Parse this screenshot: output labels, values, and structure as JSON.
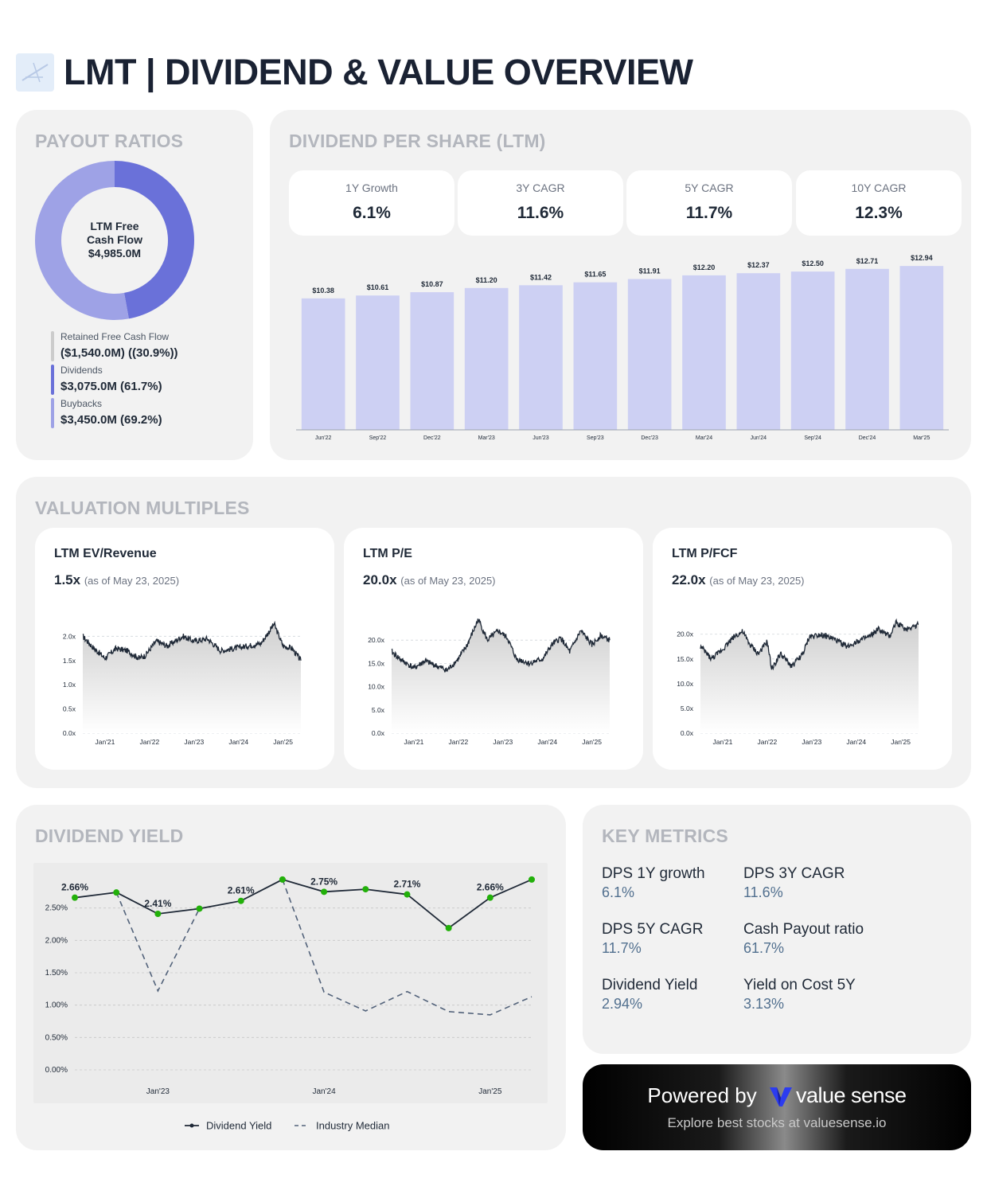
{
  "header": {
    "title": "LMT | DIVIDEND & VALUE OVERVIEW"
  },
  "payout": {
    "title": "PAYOUT RATIOS",
    "donut_center": {
      "line1": "LTM Free",
      "line2": "Cash Flow",
      "value": "$4,985.0M"
    },
    "legend": [
      {
        "label": "Retained Free Cash Flow",
        "value": "($1,540.0M) ((30.9%))",
        "color": "#cccccc"
      },
      {
        "label": "Dividends",
        "value": "$3,075.0M (61.7%)",
        "color": "#6a71d9"
      },
      {
        "label": "Buybacks",
        "value": "$3,450.0M (69.2%)",
        "color": "#9ea2e6"
      }
    ]
  },
  "dps": {
    "title": "DIVIDEND PER SHARE (LTM)",
    "stats": [
      {
        "label": "1Y Growth",
        "value": "6.1%"
      },
      {
        "label": "3Y CAGR",
        "value": "11.6%"
      },
      {
        "label": "5Y CAGR",
        "value": "11.7%"
      },
      {
        "label": "10Y CAGR",
        "value": "12.3%"
      }
    ]
  },
  "valuation": {
    "title": "VALUATION MULTIPLES",
    "cards": [
      {
        "title": "LTM EV/Revenue",
        "value": "1.5x",
        "note": "(as of May 23, 2025)"
      },
      {
        "title": "LTM P/E",
        "value": "20.0x",
        "note": "(as of May 23, 2025)"
      },
      {
        "title": "LTM P/FCF",
        "value": "22.0x",
        "note": "(as of May 23, 2025)"
      }
    ]
  },
  "yield": {
    "title": "DIVIDEND YIELD"
  },
  "key_metrics": {
    "title": "KEY METRICS",
    "items": [
      {
        "label": "DPS 1Y growth",
        "value": "6.1%"
      },
      {
        "label": "DPS 3Y CAGR",
        "value": "11.6%"
      },
      {
        "label": "DPS 5Y CAGR",
        "value": "11.7%"
      },
      {
        "label": "Cash Payout ratio",
        "value": "61.7%"
      },
      {
        "label": "Dividend Yield",
        "value": "2.94%"
      },
      {
        "label": "Yield on Cost 5Y",
        "value": "3.13%"
      }
    ]
  },
  "powered": {
    "prefix": "Powered by",
    "brand": "value sense",
    "sub": "Explore best stocks at valuesense.io"
  },
  "chart_data": [
    {
      "type": "pie",
      "categories": [
        "Dividends",
        "Buybacks"
      ],
      "values": [
        61.7,
        69.2
      ],
      "colors": [
        "#6a71d9",
        "#9ea2e6"
      ],
      "note": "donut"
    },
    {
      "type": "bar",
      "categories": [
        "Jun'22",
        "Sep'22",
        "Dec'22",
        "Mar'23",
        "Jun'23",
        "Sep'23",
        "Dec'23",
        "Mar'24",
        "Jun'24",
        "Sep'24",
        "Dec'24",
        "Mar'25"
      ],
      "values": [
        10.38,
        10.61,
        10.87,
        11.2,
        11.42,
        11.65,
        11.91,
        12.2,
        12.37,
        12.5,
        12.71,
        12.94
      ],
      "labels": [
        "$10.38",
        "$10.61",
        "$10.87",
        "$11.20",
        "$11.42",
        "$11.65",
        "$11.91",
        "$12.20",
        "$12.37",
        "$12.50",
        "$12.71",
        "$12.94"
      ],
      "color": "#cdd0f3",
      "ylim": [
        0,
        13.2
      ]
    },
    {
      "type": "area",
      "x_ticks": [
        "Jan'21",
        "Jan'22",
        "Jan'23",
        "Jan'24",
        "Jan'25"
      ],
      "y_ticks": [
        "0.0x",
        "0.5x",
        "1.0x",
        "1.5x",
        "2.0x"
      ],
      "ylim": [
        0,
        2.4
      ],
      "x_range": [
        2020.5,
        2025.4
      ],
      "anchors": [
        [
          2020.5,
          2.0
        ],
        [
          2020.75,
          1.75
        ],
        [
          2021.0,
          1.55
        ],
        [
          2021.25,
          1.75
        ],
        [
          2021.5,
          1.7
        ],
        [
          2021.75,
          1.55
        ],
        [
          2021.9,
          1.6
        ],
        [
          2022.15,
          1.9
        ],
        [
          2022.4,
          1.8
        ],
        [
          2022.75,
          2.0
        ],
        [
          2023.0,
          1.9
        ],
        [
          2023.3,
          1.95
        ],
        [
          2023.6,
          1.7
        ],
        [
          2023.9,
          1.75
        ],
        [
          2024.2,
          1.8
        ],
        [
          2024.5,
          1.85
        ],
        [
          2024.8,
          2.25
        ],
        [
          2025.0,
          1.8
        ],
        [
          2025.2,
          1.75
        ],
        [
          2025.4,
          1.5
        ]
      ],
      "grid": true
    },
    {
      "type": "area",
      "x_ticks": [
        "Jan'21",
        "Jan'22",
        "Jan'23",
        "Jan'24",
        "Jan'25"
      ],
      "y_ticks": [
        "0.0x",
        "5.0x",
        "10.0x",
        "15.0x",
        "20.0x"
      ],
      "ylim": [
        0,
        25
      ],
      "x_range": [
        2020.5,
        2025.4
      ],
      "anchors": [
        [
          2020.5,
          17.5
        ],
        [
          2020.75,
          15.5
        ],
        [
          2021.0,
          14.0
        ],
        [
          2021.25,
          15.5
        ],
        [
          2021.5,
          14.5
        ],
        [
          2021.75,
          13.5
        ],
        [
          2022.0,
          16.0
        ],
        [
          2022.2,
          19.0
        ],
        [
          2022.45,
          24.5
        ],
        [
          2022.65,
          20.0
        ],
        [
          2022.9,
          22.0
        ],
        [
          2023.1,
          20.5
        ],
        [
          2023.3,
          16.0
        ],
        [
          2023.6,
          15.0
        ],
        [
          2023.9,
          16.0
        ],
        [
          2024.1,
          19.0
        ],
        [
          2024.3,
          20.5
        ],
        [
          2024.5,
          17.5
        ],
        [
          2024.75,
          22.0
        ],
        [
          2025.0,
          19.0
        ],
        [
          2025.2,
          21.0
        ],
        [
          2025.4,
          20.0
        ]
      ],
      "grid": true
    },
    {
      "type": "area",
      "x_ticks": [
        "Jan'21",
        "Jan'22",
        "Jan'23",
        "Jan'24",
        "Jan'25"
      ],
      "y_ticks": [
        "0.0x",
        "5.0x",
        "10.0x",
        "15.0x",
        "20.0x"
      ],
      "ylim": [
        0,
        23.5
      ],
      "x_range": [
        2020.5,
        2025.4
      ],
      "anchors": [
        [
          2020.5,
          17.5
        ],
        [
          2020.75,
          15.0
        ],
        [
          2021.0,
          17.0
        ],
        [
          2021.25,
          19.5
        ],
        [
          2021.45,
          20.5
        ],
        [
          2021.6,
          18.0
        ],
        [
          2021.8,
          16.0
        ],
        [
          2022.0,
          18.5
        ],
        [
          2022.1,
          13.0
        ],
        [
          2022.3,
          16.0
        ],
        [
          2022.55,
          13.5
        ],
        [
          2022.8,
          16.0
        ],
        [
          2022.95,
          19.5
        ],
        [
          2023.2,
          20.0
        ],
        [
          2023.5,
          19.0
        ],
        [
          2023.8,
          17.5
        ],
        [
          2024.0,
          18.5
        ],
        [
          2024.3,
          19.5
        ],
        [
          2024.5,
          21.0
        ],
        [
          2024.75,
          19.5
        ],
        [
          2024.9,
          22.5
        ],
        [
          2025.1,
          21.0
        ],
        [
          2025.4,
          22.0
        ]
      ],
      "grid": true
    },
    {
      "type": "line",
      "x_ticks": [
        "Jan'23",
        "Jan'24",
        "Jan'25"
      ],
      "y_ticks": [
        "0.00%",
        "0.50%",
        "1.00%",
        "1.50%",
        "2.00%",
        "2.50%"
      ],
      "ylim": [
        0,
        3.0
      ],
      "series": [
        {
          "name": "Dividend Yield",
          "values": [
            2.66,
            2.74,
            2.41,
            2.49,
            2.61,
            2.94,
            2.75,
            2.79,
            2.71,
            2.19,
            2.66,
            2.94
          ],
          "labels": [
            "2.66%",
            "",
            "2.41%",
            "",
            "2.61%",
            "",
            "2.75%",
            "",
            "2.71%",
            "",
            "2.66%",
            ""
          ]
        },
        {
          "name": "Industry Median",
          "values": [
            null,
            2.74,
            1.22,
            2.49,
            null,
            2.94,
            1.2,
            0.91,
            1.21,
            0.9,
            0.85,
            1.13
          ]
        }
      ],
      "legend": "bottom"
    }
  ]
}
